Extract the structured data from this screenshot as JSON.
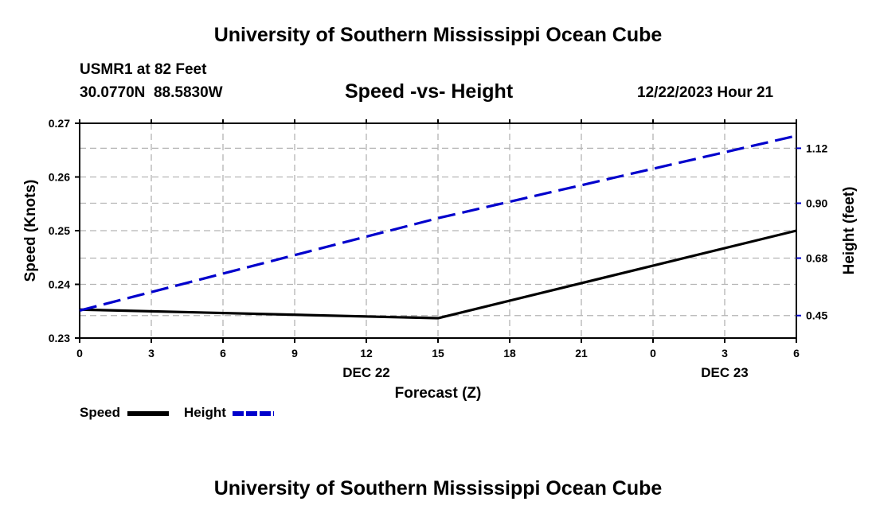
{
  "header": {
    "title": "University of Southern Mississippi Ocean Cube",
    "station": "USMR1 at 82 Feet",
    "coords": "30.0770N  88.5830W",
    "subtitle": "Speed -vs- Height",
    "datetime": "12/22/2023 Hour 21"
  },
  "footer": {
    "title": "University of Southern Mississippi Ocean Cube"
  },
  "colors": {
    "speed": "#000000",
    "height": "#0000cc",
    "grid": "#b4b4b4"
  },
  "chart_data": {
    "type": "line",
    "title": "Speed -vs- Height",
    "xlabel": "Forecast (Z)",
    "ylabel": "Speed (Knots)",
    "y2label": "Height (feet)",
    "x": [
      0,
      3,
      6,
      9,
      12,
      15,
      18,
      21,
      24,
      27,
      30
    ],
    "xlim": [
      0,
      30
    ],
    "x_tick_labels": [
      "0",
      "3",
      "6",
      "9",
      "12",
      "15",
      "18",
      "21",
      "0",
      "3",
      "6"
    ],
    "date_labels": [
      {
        "x": 12,
        "label": "DEC 22"
      },
      {
        "x": 27,
        "label": "DEC 23"
      }
    ],
    "ylim": [
      0.23,
      0.27
    ],
    "y_ticks": [
      0.23,
      0.24,
      0.25,
      0.26,
      0.27
    ],
    "y_tick_labels": [
      "0.23",
      "0.24",
      "0.25",
      "0.26",
      "0.27"
    ],
    "y2lim": [
      0.36,
      1.22
    ],
    "y2_ticks": [
      0.45,
      0.68,
      0.9,
      1.12
    ],
    "y2_tick_labels": [
      "0.45",
      "0.68",
      "0.90",
      "1.12"
    ],
    "series": [
      {
        "name": "Speed",
        "axis": "left",
        "style": "solid",
        "x": [
          0,
          15,
          30
        ],
        "values": [
          0.2353,
          0.2337,
          0.25
        ]
      },
      {
        "name": "Height",
        "axis": "right",
        "style": "dashed",
        "x": [
          0,
          15,
          30
        ],
        "values": [
          0.47,
          0.84,
          1.17
        ]
      }
    ],
    "legend": [
      "Speed",
      "Height"
    ],
    "legend_position": "bottom-left",
    "grid": true
  }
}
